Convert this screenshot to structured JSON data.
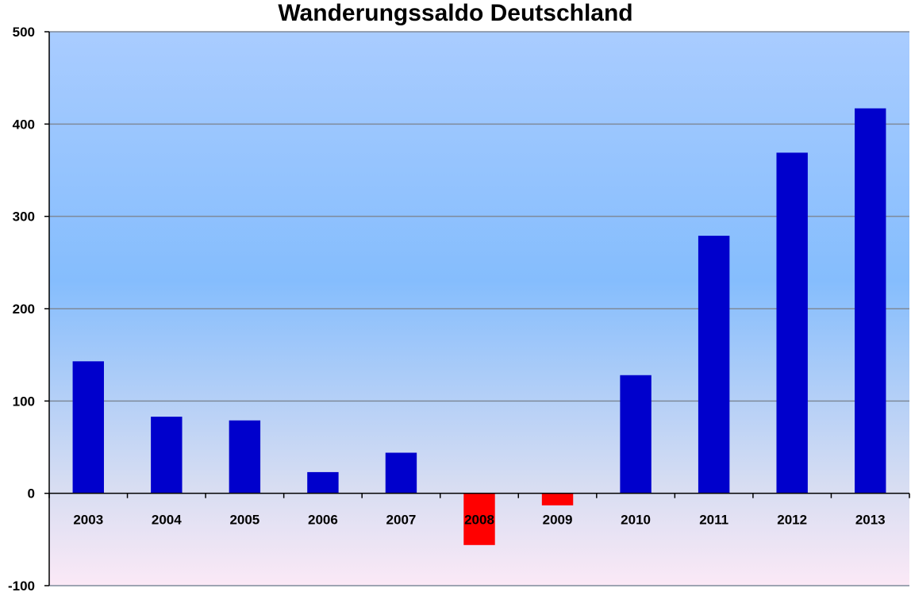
{
  "chart_data": {
    "type": "bar",
    "title": "Wanderungssaldo Deutschland",
    "xlabel": "",
    "ylabel": "",
    "categories": [
      "2003",
      "2004",
      "2005",
      "2006",
      "2007",
      "2008",
      "2009",
      "2010",
      "2011",
      "2012",
      "2013"
    ],
    "series": [
      {
        "values": [
          143,
          83,
          79,
          23,
          44,
          -56,
          -13,
          128,
          279,
          369,
          417
        ]
      }
    ],
    "ylim": [
      -100,
      500
    ],
    "yticks": [
      -100,
      0,
      100,
      200,
      300,
      400,
      500
    ],
    "grid": true,
    "colors": {
      "positive": "#0000cc",
      "negative": "#ff0000",
      "plot_top": "#a9ccff",
      "plot_mid": "#85bdfd",
      "plot_low": "#d7ddf2",
      "plot_bottom": "#fbe9f6"
    }
  }
}
